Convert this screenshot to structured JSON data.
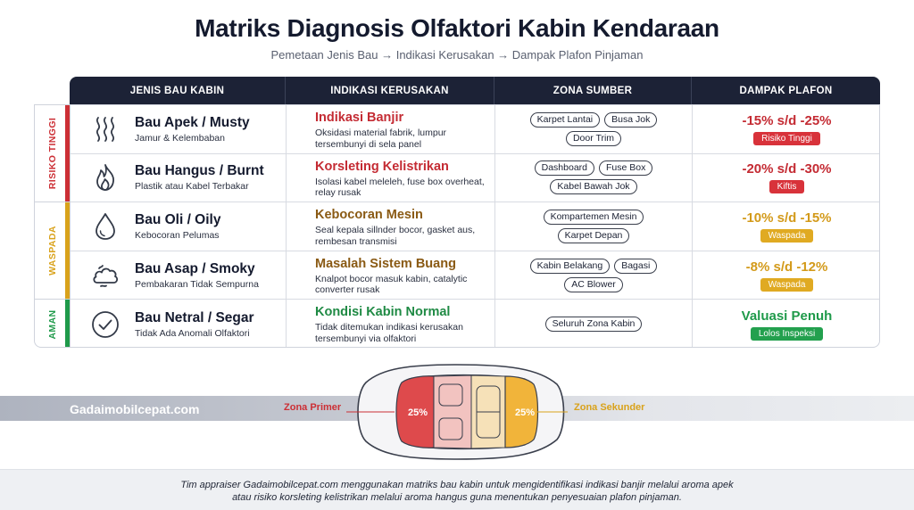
{
  "header": {
    "title": "Matriks Diagnosis Olfaktori Kabin Kendaraan",
    "subtitle": "Pemetaan Jenis Bau → Indikasi Kerusakan → Dampak Plafon Pinjaman"
  },
  "columns": [
    "JENIS BAU KABIN",
    "INDIKASI KERUSAKAN",
    "ZONA SUMBER",
    "DAMPAK PLAFON"
  ],
  "risk_groups": [
    {
      "label": "RISIKO TINGGI",
      "color": "#cc2f35"
    },
    {
      "label": "WASPADA",
      "color": "#d9a21b"
    },
    {
      "label": "AMAN",
      "color": "#1f9a4a"
    }
  ],
  "rows": [
    {
      "icon": "wavy-lines-icon",
      "smell": "Bau Apek / Musty",
      "smell_desc": "Jamur & Kelembaban",
      "indication": "Indikasi Banjir",
      "indication_desc": "Oksidasi material fabrik, lumpur tersembunyi di sela panel",
      "zones": [
        "Karpet Lantai",
        "Busa Jok",
        "Door Trim"
      ],
      "impact": "-15% s/d -25%",
      "badge": "Risiko Tinggi",
      "color": "#c42b33"
    },
    {
      "icon": "flame-icon",
      "smell": "Bau Hangus / Burnt",
      "smell_desc": "Plastik atau Kabel Terbakar",
      "indication": "Korsleting Kelistrikan",
      "indication_desc": "Isolasi kabel meleleh, fuse box overheat, relay rusak",
      "zones": [
        "Dashboard",
        "Fuse Box",
        "Kabel Bawah Jok"
      ],
      "impact": "-20% s/d -30%",
      "badge": "Kiftis",
      "color": "#c42b33"
    },
    {
      "icon": "oil-drop-icon",
      "smell": "Bau Oli / Oily",
      "smell_desc": "Kebocoran Pelumas",
      "indication": "Kebocoran Mesin",
      "indication_desc": "Seal kepala sillnder bocor, gasket aus, rembesan transmisi",
      "zones": [
        "Kompartemen Mesin",
        "Karpet Depan"
      ],
      "impact": "-10% s/d -15%",
      "badge": "Waspada",
      "color": "#8a5a14",
      "impact_color": "#d39a1a"
    },
    {
      "icon": "smoke-cloud-icon",
      "smell": "Bau Asap / Smoky",
      "smell_desc": "Pembakaran Tidak Sempurna",
      "indication": "Masalah Sistem Buang",
      "indication_desc": "Knalpot bocor masuk kabin, catalytic converter rusak",
      "zones": [
        "Kabin Belakang",
        "Bagasi",
        "AC Blower"
      ],
      "impact": "-8% s/d -12%",
      "badge": "Waspada",
      "color": "#8a5a14",
      "impact_color": "#d39a1a"
    },
    {
      "icon": "check-circle-icon",
      "smell": "Bau Netral / Segar",
      "smell_desc": "Tidak Ada Anomali Olfaktori",
      "indication": "Kondisi Kabin Normal",
      "indication_desc": "Tidak ditemukan indikasi kerusakan tersembunyi via olfaktori",
      "zones": [
        "Seluruh Zona Kabin"
      ],
      "impact": "Valuasi Penuh",
      "badge": "Lolos Inspeksi",
      "color": "#1f8a44",
      "impact_color": "#1f9a4a"
    }
  ],
  "diagram": {
    "brand": "Gadaimobilcepat.com",
    "primary_label": "Zona Primer",
    "secondary_label": "Zona Sekunder",
    "primary_pct": "25%",
    "secondary_pct": "25%"
  },
  "footer": {
    "line1": "Tim appraiser Gadaimobilcepat.com menggunakan matriks bau kabin untuk mengidentifikasi indikasi banjir melalui aroma apek",
    "line2": "atau risiko korsleting kelistrikan melalui aroma hangus guna menentukan penyesuaian plafon pinjaman."
  }
}
